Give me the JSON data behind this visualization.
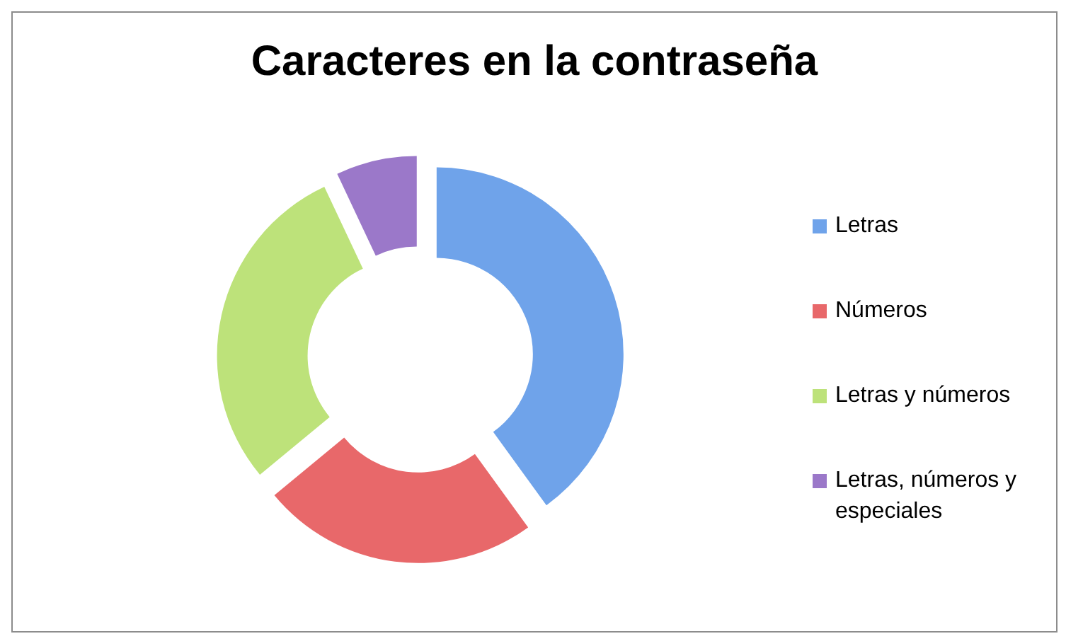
{
  "chart_data": {
    "type": "donut",
    "title": "Caracteres en la contraseña",
    "categories": [
      "Letras",
      "Números",
      "Letras y números",
      "Letras, números y especiales"
    ],
    "values": [
      40,
      24,
      29,
      7
    ],
    "colors": [
      "#6fa3ea",
      "#e8686a",
      "#bde27a",
      "#9b78c9"
    ],
    "legend": "right"
  }
}
